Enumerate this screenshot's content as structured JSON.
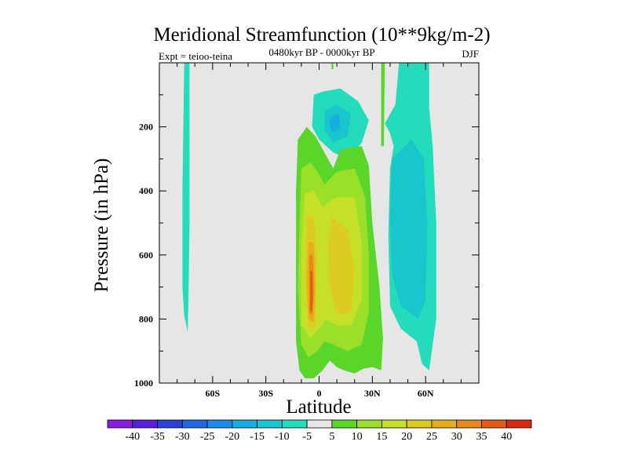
{
  "chart_data": {
    "type": "heatmap",
    "title": "Meridional Streamfunction (10**9kg/m-2)",
    "subtitle": "0480kyr BP - 0000kyr BP",
    "experiment_label": "Expt = teioo-teina",
    "season": "DJF",
    "xlabel": "Latitude",
    "ylabel": "Pressure (in hPa)",
    "xlim": [
      -90,
      90
    ],
    "ylim": [
      1000,
      0
    ],
    "x_ticks": [
      {
        "value": -60,
        "label": "60S"
      },
      {
        "value": -30,
        "label": "30S"
      },
      {
        "value": 0,
        "label": "0"
      },
      {
        "value": 30,
        "label": "30N"
      },
      {
        "value": 60,
        "label": "60N"
      }
    ],
    "y_ticks": [
      {
        "value": 200,
        "label": "200"
      },
      {
        "value": 400,
        "label": "400"
      },
      {
        "value": 600,
        "label": "600"
      },
      {
        "value": 800,
        "label": "800"
      },
      {
        "value": 1000,
        "label": "1000"
      }
    ],
    "colorbar": {
      "labels": [
        "-40",
        "-35",
        "-30",
        "-25",
        "-20",
        "-15",
        "-10",
        "-5",
        "5",
        "10",
        "15",
        "20",
        "25",
        "30",
        "35",
        "40"
      ],
      "colors": [
        "#8a1ee0",
        "#5a20d6",
        "#2c3fd8",
        "#2266e2",
        "#1a8ce8",
        "#15aee0",
        "#18c6cc",
        "#22dcbc",
        "#e6e6e6",
        "#5ad62a",
        "#9ae028",
        "#c6e02a",
        "#dccc22",
        "#e6ac1a",
        "#e6881a",
        "#e25a16",
        "#d82a12"
      ]
    },
    "contour_regions": [
      {
        "name": "sh-high-lat-cell",
        "level": -5,
        "points": [
          [
            -76,
            0
          ],
          [
            -73,
            0
          ],
          [
            -73,
            500
          ],
          [
            -73.5,
            700
          ],
          [
            -74,
            840
          ],
          [
            -76,
            790
          ],
          [
            -77,
            700
          ],
          [
            -77,
            400
          ]
        ]
      },
      {
        "name": "upper-tropo-neg-cell",
        "level": -5,
        "points": [
          [
            -3,
            100
          ],
          [
            2,
            90
          ],
          [
            12,
            80
          ],
          [
            22,
            120
          ],
          [
            28,
            180
          ],
          [
            24,
            250
          ],
          [
            16,
            300
          ],
          [
            8,
            280
          ],
          [
            0,
            240
          ],
          [
            -4,
            200
          ]
        ]
      },
      {
        "name": "upper-tropo-neg-cell-inner",
        "level": -10,
        "points": [
          [
            3,
            150
          ],
          [
            10,
            130
          ],
          [
            18,
            160
          ],
          [
            16,
            230
          ],
          [
            8,
            250
          ],
          [
            3,
            210
          ]
        ]
      },
      {
        "name": "upper-tropo-neg-cell-core",
        "level": -15,
        "points": [
          [
            6,
            170
          ],
          [
            11,
            160
          ],
          [
            12,
            200
          ],
          [
            8,
            220
          ],
          [
            6,
            200
          ]
        ]
      },
      {
        "name": "nh-midlat-neg-cell",
        "level": -5,
        "points": [
          [
            45,
            0
          ],
          [
            62,
            0
          ],
          [
            62,
            140
          ],
          [
            64,
            260
          ],
          [
            66,
            500
          ],
          [
            66,
            800
          ],
          [
            64,
            880
          ],
          [
            62,
            960
          ],
          [
            58,
            940
          ],
          [
            55,
            870
          ],
          [
            46,
            830
          ],
          [
            40,
            760
          ],
          [
            39,
            540
          ],
          [
            40,
            330
          ],
          [
            42,
            260
          ],
          [
            40,
            220
          ],
          [
            37,
            190
          ],
          [
            43,
            130
          ]
        ]
      },
      {
        "name": "nh-midlat-neg-cell-inner",
        "level": -10,
        "points": [
          [
            41,
            300
          ],
          [
            52,
            240
          ],
          [
            59,
            300
          ],
          [
            61,
            500
          ],
          [
            60,
            740
          ],
          [
            56,
            800
          ],
          [
            46,
            760
          ],
          [
            41,
            660
          ],
          [
            40,
            480
          ]
        ]
      },
      {
        "name": "pos-sliver-high",
        "level": 5,
        "points": [
          [
            35,
            0
          ],
          [
            37,
            0
          ],
          [
            36.5,
            260
          ],
          [
            35,
            260
          ]
        ]
      },
      {
        "name": "pos-sliver-top",
        "level": 5,
        "points": [
          [
            7,
            0
          ],
          [
            8,
            0
          ],
          [
            8,
            20
          ],
          [
            7,
            20
          ]
        ]
      },
      {
        "name": "tropical-pos-cell",
        "level": 5,
        "points": [
          [
            -12,
            240
          ],
          [
            -7,
            200
          ],
          [
            -2,
            230
          ],
          [
            3,
            280
          ],
          [
            8,
            330
          ],
          [
            12,
            270
          ],
          [
            24,
            260
          ],
          [
            28,
            320
          ],
          [
            30,
            500
          ],
          [
            34,
            700
          ],
          [
            36,
            860
          ],
          [
            35,
            960
          ],
          [
            30,
            950
          ],
          [
            25,
            955
          ],
          [
            20,
            970
          ],
          [
            14,
            960
          ],
          [
            10,
            950
          ],
          [
            6,
            930
          ],
          [
            2,
            960
          ],
          [
            -3,
            985
          ],
          [
            -8,
            985
          ],
          [
            -11,
            960
          ],
          [
            -13,
            870
          ],
          [
            -13,
            600
          ],
          [
            -13,
            400
          ]
        ]
      },
      {
        "name": "tropical-pos-l10",
        "level": 10,
        "points": [
          [
            -10,
            330
          ],
          [
            -5,
            310
          ],
          [
            -1,
            340
          ],
          [
            3,
            380
          ],
          [
            10,
            340
          ],
          [
            20,
            330
          ],
          [
            26,
            420
          ],
          [
            28,
            600
          ],
          [
            28,
            780
          ],
          [
            24,
            880
          ],
          [
            16,
            900
          ],
          [
            8,
            880
          ],
          [
            3,
            870
          ],
          [
            -1,
            900
          ],
          [
            -6,
            920
          ],
          [
            -10,
            880
          ],
          [
            -12,
            700
          ],
          [
            -11,
            500
          ]
        ]
      },
      {
        "name": "tropical-pos-l15",
        "level": 15,
        "points": [
          [
            -8,
            410
          ],
          [
            -3,
            400
          ],
          [
            2,
            450
          ],
          [
            9,
            420
          ],
          [
            20,
            420
          ],
          [
            24,
            560
          ],
          [
            24,
            740
          ],
          [
            18,
            820
          ],
          [
            10,
            820
          ],
          [
            4,
            800
          ],
          [
            0,
            830
          ],
          [
            -5,
            860
          ],
          [
            -10,
            820
          ],
          [
            -10,
            560
          ]
        ]
      },
      {
        "name": "sh-side-l20",
        "level": 20,
        "points": [
          [
            -7,
            480
          ],
          [
            -3,
            480
          ],
          [
            -1,
            600
          ],
          [
            -2,
            820
          ],
          [
            -6,
            830
          ],
          [
            -8,
            680
          ]
        ]
      },
      {
        "name": "nh-side-l20",
        "level": 20,
        "points": [
          [
            7,
            480
          ],
          [
            16,
            520
          ],
          [
            20,
            640
          ],
          [
            18,
            780
          ],
          [
            10,
            790
          ],
          [
            6,
            700
          ],
          [
            5,
            580
          ]
        ]
      },
      {
        "name": "core-l25",
        "level": 25,
        "points": [
          [
            -6,
            560
          ],
          [
            -3,
            560
          ],
          [
            -2,
            700
          ],
          [
            -3,
            810
          ],
          [
            -6,
            800
          ],
          [
            -7,
            680
          ]
        ]
      },
      {
        "name": "core-l30",
        "level": 30,
        "points": [
          [
            -5.5,
            600
          ],
          [
            -3.5,
            600
          ],
          [
            -3,
            720
          ],
          [
            -4,
            790
          ],
          [
            -5.5,
            780
          ]
        ]
      },
      {
        "name": "core-l35",
        "level": 35,
        "points": [
          [
            -5,
            650
          ],
          [
            -3.8,
            650
          ],
          [
            -3.5,
            740
          ],
          [
            -4,
            780
          ],
          [
            -5,
            770
          ]
        ]
      }
    ]
  }
}
